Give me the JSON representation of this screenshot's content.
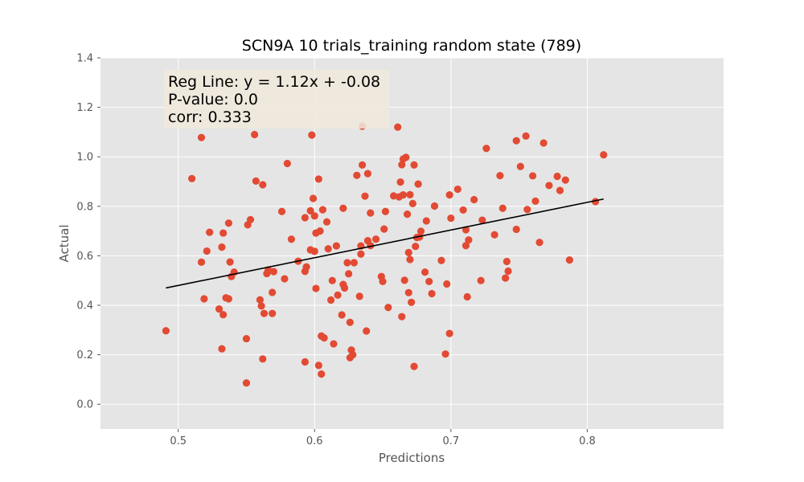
{
  "chart_data": {
    "type": "scatter",
    "title": "SCN9A 10 trials_training random state (789)",
    "xlabel": "Predictions",
    "ylabel": "Actual",
    "xlim": [
      0.443,
      0.9
    ],
    "ylim": [
      -0.1,
      1.4
    ],
    "xticks": [
      0.5,
      0.6,
      0.7,
      0.8
    ],
    "xtick_labels": [
      "0.5",
      "0.6",
      "0.7",
      "0.8"
    ],
    "yticks": [
      0.0,
      0.2,
      0.4,
      0.6,
      0.8,
      1.0,
      1.2,
      1.4
    ],
    "ytick_labels": [
      "0.0",
      "0.2",
      "0.4",
      "0.6",
      "0.8",
      "1.0",
      "1.2",
      "1.4"
    ],
    "grid": true,
    "colors": {
      "point": "#e24a33",
      "line": "#000000",
      "plot_bg": "#e5e5e5",
      "grid": "#ffffff",
      "annotation_bg": "#f1e9dc"
    },
    "annotation": {
      "lines": [
        "Reg Line: y = 1.12x + -0.08",
        "P-value: 0.0",
        "corr: 0.333"
      ],
      "placement": "top-left"
    },
    "regression": {
      "slope": 1.12,
      "intercept": -0.08,
      "x_range": [
        0.491,
        0.812
      ]
    },
    "points": [
      [
        0.491,
        0.297
      ],
      [
        0.51,
        0.912
      ],
      [
        0.517,
        1.078
      ],
      [
        0.517,
        0.574
      ],
      [
        0.519,
        0.426
      ],
      [
        0.521,
        0.619
      ],
      [
        0.523,
        0.695
      ],
      [
        0.53,
        0.385
      ],
      [
        0.532,
        0.635
      ],
      [
        0.532,
        0.224
      ],
      [
        0.533,
        0.362
      ],
      [
        0.533,
        0.692
      ],
      [
        0.535,
        0.43
      ],
      [
        0.537,
        0.426
      ],
      [
        0.537,
        0.732
      ],
      [
        0.538,
        0.575
      ],
      [
        0.539,
        0.516
      ],
      [
        0.541,
        0.534
      ],
      [
        0.55,
        0.086
      ],
      [
        0.55,
        0.265
      ],
      [
        0.551,
        0.725
      ],
      [
        0.553,
        0.746
      ],
      [
        0.556,
        1.09
      ],
      [
        0.557,
        0.902
      ],
      [
        0.56,
        0.422
      ],
      [
        0.561,
        0.397
      ],
      [
        0.562,
        0.887
      ],
      [
        0.562,
        0.183
      ],
      [
        0.563,
        0.367
      ],
      [
        0.565,
        0.528
      ],
      [
        0.566,
        0.543
      ],
      [
        0.569,
        0.452
      ],
      [
        0.569,
        0.367
      ],
      [
        0.57,
        0.536
      ],
      [
        0.576,
        0.779
      ],
      [
        0.578,
        0.507
      ],
      [
        0.58,
        0.973
      ],
      [
        0.583,
        0.667
      ],
      [
        0.588,
        0.578
      ],
      [
        0.593,
        0.171
      ],
      [
        0.593,
        0.754
      ],
      [
        0.593,
        0.537
      ],
      [
        0.594,
        0.555
      ],
      [
        0.597,
        0.624
      ],
      [
        0.597,
        0.782
      ],
      [
        0.598,
        1.088
      ],
      [
        0.599,
        0.832
      ],
      [
        0.6,
        0.618
      ],
      [
        0.6,
        0.761
      ],
      [
        0.601,
        0.692
      ],
      [
        0.601,
        0.468
      ],
      [
        0.603,
        0.91
      ],
      [
        0.603,
        0.157
      ],
      [
        0.604,
        0.7
      ],
      [
        0.605,
        0.122
      ],
      [
        0.605,
        0.276
      ],
      [
        0.606,
        0.786
      ],
      [
        0.607,
        0.268
      ],
      [
        0.609,
        0.737
      ],
      [
        0.61,
        0.628
      ],
      [
        0.612,
        0.421
      ],
      [
        0.613,
        0.5
      ],
      [
        0.614,
        0.244
      ],
      [
        0.616,
        0.64
      ],
      [
        0.617,
        0.441
      ],
      [
        0.62,
        0.361
      ],
      [
        0.621,
        0.792
      ],
      [
        0.621,
        0.484
      ],
      [
        0.622,
        0.47
      ],
      [
        0.624,
        0.572
      ],
      [
        0.625,
        0.527
      ],
      [
        0.626,
        0.331
      ],
      [
        0.626,
        0.188
      ],
      [
        0.627,
        0.219
      ],
      [
        0.628,
        0.2
      ],
      [
        0.629,
        0.572
      ],
      [
        0.631,
        0.925
      ],
      [
        0.633,
        0.436
      ],
      [
        0.634,
        0.607
      ],
      [
        0.634,
        0.64
      ],
      [
        0.635,
        0.967
      ],
      [
        0.635,
        1.124
      ],
      [
        0.637,
        0.841
      ],
      [
        0.638,
        0.296
      ],
      [
        0.639,
        0.932
      ],
      [
        0.639,
        0.661
      ],
      [
        0.641,
        0.773
      ],
      [
        0.641,
        0.641
      ],
      [
        0.645,
        0.667
      ],
      [
        0.649,
        0.516
      ],
      [
        0.65,
        0.496
      ],
      [
        0.651,
        0.708
      ],
      [
        0.652,
        0.779
      ],
      [
        0.654,
        0.391
      ],
      [
        0.658,
        0.842
      ],
      [
        0.661,
        1.12
      ],
      [
        0.662,
        0.838
      ],
      [
        0.663,
        0.898
      ],
      [
        0.664,
        0.968
      ],
      [
        0.664,
        0.354
      ],
      [
        0.665,
        0.846
      ],
      [
        0.665,
        0.991
      ],
      [
        0.666,
        0.501
      ],
      [
        0.667,
        0.998
      ],
      [
        0.668,
        0.768
      ],
      [
        0.669,
        0.451
      ],
      [
        0.669,
        0.613
      ],
      [
        0.67,
        0.847
      ],
      [
        0.67,
        0.585
      ],
      [
        0.671,
        0.412
      ],
      [
        0.672,
        0.811
      ],
      [
        0.673,
        0.967
      ],
      [
        0.673,
        0.153
      ],
      [
        0.674,
        0.638
      ],
      [
        0.675,
        0.674
      ],
      [
        0.676,
        0.89
      ],
      [
        0.677,
        0.676
      ],
      [
        0.678,
        0.699
      ],
      [
        0.681,
        0.534
      ],
      [
        0.682,
        0.741
      ],
      [
        0.684,
        0.496
      ],
      [
        0.686,
        0.447
      ],
      [
        0.688,
        0.801
      ],
      [
        0.693,
        0.581
      ],
      [
        0.696,
        0.203
      ],
      [
        0.697,
        0.486
      ],
      [
        0.699,
        0.286
      ],
      [
        0.699,
        0.846
      ],
      [
        0.7,
        0.752
      ],
      [
        0.705,
        0.869
      ],
      [
        0.709,
        0.785
      ],
      [
        0.711,
        0.641
      ],
      [
        0.711,
        0.705
      ],
      [
        0.712,
        0.434
      ],
      [
        0.713,
        0.664
      ],
      [
        0.717,
        0.827
      ],
      [
        0.722,
        0.5
      ],
      [
        0.723,
        0.744
      ],
      [
        0.726,
        1.034
      ],
      [
        0.732,
        0.685
      ],
      [
        0.736,
        0.924
      ],
      [
        0.738,
        0.792
      ],
      [
        0.74,
        0.51
      ],
      [
        0.741,
        0.577
      ],
      [
        0.742,
        0.538
      ],
      [
        0.748,
        1.065
      ],
      [
        0.748,
        0.707
      ],
      [
        0.751,
        0.961
      ],
      [
        0.755,
        1.084
      ],
      [
        0.756,
        0.787
      ],
      [
        0.76,
        0.923
      ],
      [
        0.762,
        0.821
      ],
      [
        0.765,
        0.654
      ],
      [
        0.768,
        1.056
      ],
      [
        0.772,
        0.884
      ],
      [
        0.778,
        0.921
      ],
      [
        0.78,
        0.864
      ],
      [
        0.784,
        0.906
      ],
      [
        0.787,
        0.583
      ],
      [
        0.806,
        0.819
      ],
      [
        0.812,
        1.008
      ]
    ]
  }
}
